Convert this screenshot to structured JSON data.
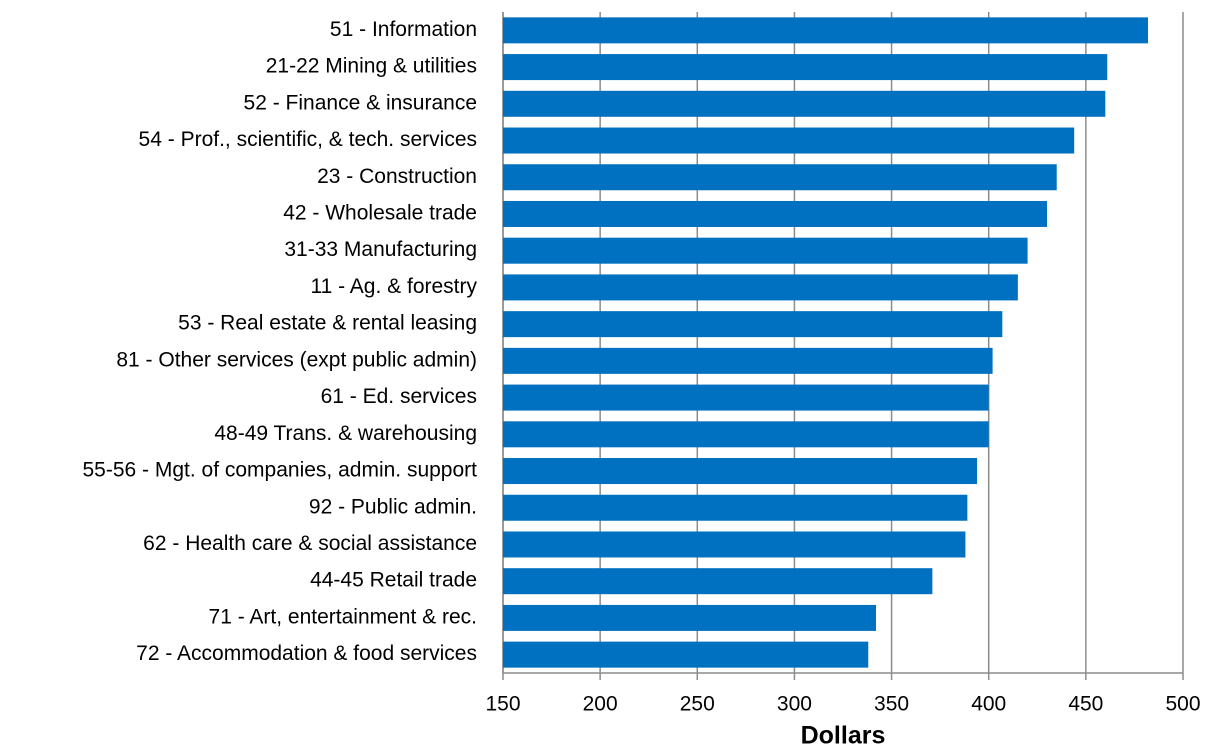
{
  "chart_data": {
    "type": "hbar",
    "categories": [
      "51 - Information",
      "21-22 Mining & utilities",
      "52 - Finance & insurance",
      "54 - Prof., scientific, & tech. services",
      "23 - Construction",
      "42 - Wholesale trade",
      "31-33 Manufacturing",
      "11 - Ag. & forestry",
      "53 - Real estate & rental leasing",
      "81 - Other services (expt public admin)",
      "61 - Ed. services",
      "48-49 Trans. & warehousing",
      "55-56 - Mgt. of companies, admin. support",
      "92 - Public admin.",
      "62 - Health care & social assistance",
      "44-45 Retail trade",
      "71 - Art, entertainment & rec.",
      "72 - Accommodation & food services"
    ],
    "values": [
      482,
      461,
      460,
      444,
      435,
      430,
      420,
      415,
      407,
      402,
      400,
      400,
      394,
      389,
      388,
      371,
      342,
      338
    ],
    "color": "#0070c0",
    "xlabel": "Dollars",
    "xlim": [
      150,
      500
    ],
    "xticks": [
      150,
      200,
      250,
      300,
      350,
      400,
      450,
      500
    ],
    "grid": true
  }
}
